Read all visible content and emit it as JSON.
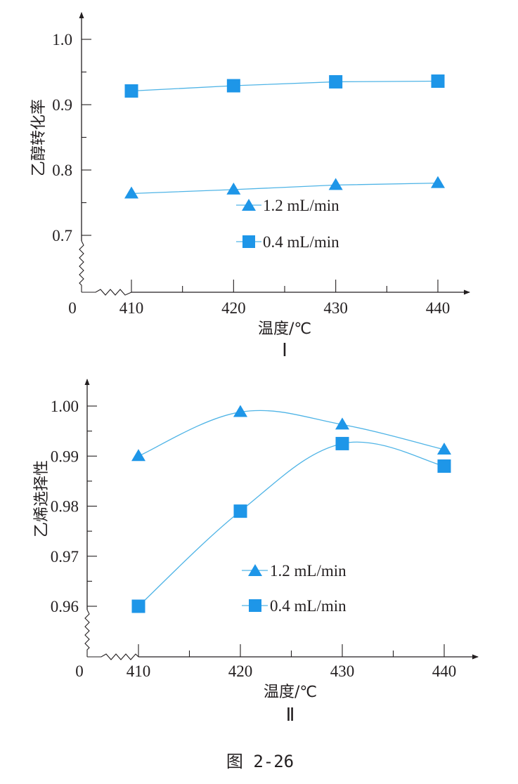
{
  "figure_caption": "图 2-26",
  "colors": {
    "marker": "#1e96e8",
    "line": "#4fb4e6",
    "axis": "#231f20"
  },
  "chart_data": [
    {
      "type": "line",
      "panel_label": "Ⅰ",
      "title": "",
      "xlabel": "温度/℃",
      "ylabel": "乙醇转化率",
      "x_origin_label": "0",
      "x": [
        410,
        420,
        430,
        440
      ],
      "x_ticks": [
        "410",
        "420",
        "430",
        "440"
      ],
      "y_ticks": [
        "0.7",
        "0.8",
        "0.9",
        "1.0"
      ],
      "y_tick_values": [
        0.7,
        0.8,
        0.9,
        1.0
      ],
      "xlim": [
        410,
        440
      ],
      "ylim": [
        0.7,
        1.0
      ],
      "axis_break": true,
      "grid": false,
      "legend_position": "center-bottom",
      "series": [
        {
          "name": "1.2 mL/min",
          "marker": "triangle",
          "values": [
            0.764,
            0.77,
            0.777,
            0.78
          ]
        },
        {
          "name": "0.4 mL/min",
          "marker": "square",
          "values": [
            0.921,
            0.929,
            0.935,
            0.936
          ]
        }
      ]
    },
    {
      "type": "line",
      "panel_label": "Ⅱ",
      "title": "",
      "xlabel": "温度/℃",
      "ylabel": "乙烯选择性",
      "x_origin_label": "0",
      "x": [
        410,
        420,
        430,
        440
      ],
      "x_ticks": [
        "410",
        "420",
        "430",
        "440"
      ],
      "y_ticks": [
        "0.96",
        "0.97",
        "0.98",
        "0.99",
        "1.00"
      ],
      "y_tick_values": [
        0.96,
        0.97,
        0.98,
        0.99,
        1.0
      ],
      "xlim": [
        410,
        440
      ],
      "ylim": [
        0.96,
        1.0
      ],
      "axis_break": true,
      "grid": false,
      "smooth": true,
      "legend_position": "center-bottom",
      "series": [
        {
          "name": "1.2 mL/min",
          "marker": "triangle",
          "values": [
            0.99,
            0.9988,
            0.9963,
            0.9913
          ]
        },
        {
          "name": "0.4 mL/min",
          "marker": "square",
          "values": [
            0.96,
            0.979,
            0.9925,
            0.988
          ]
        }
      ]
    }
  ]
}
